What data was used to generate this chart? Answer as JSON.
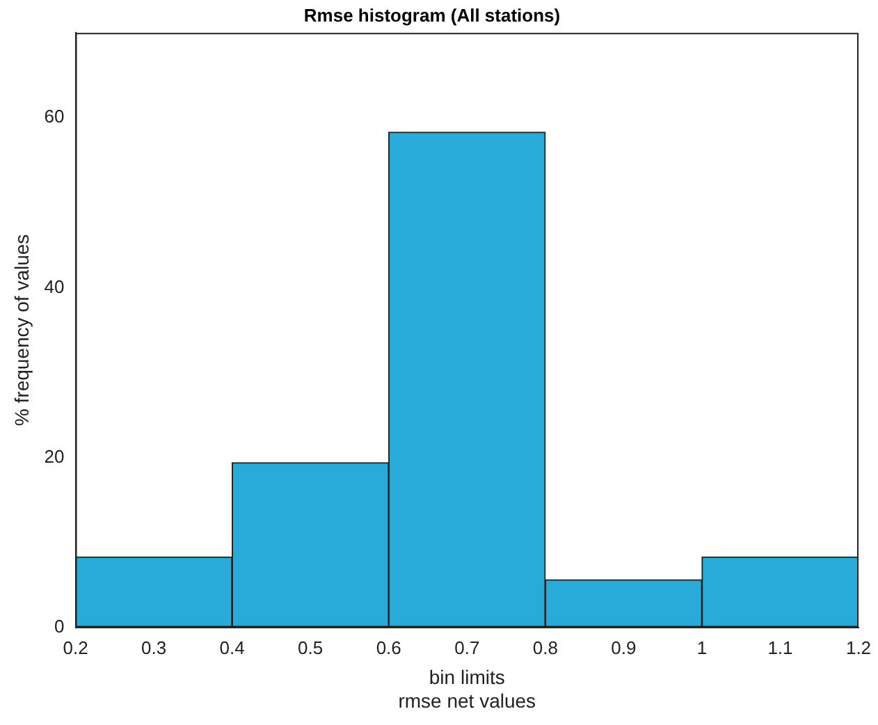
{
  "chart_data": {
    "type": "histogram",
    "title": "Rmse histogram (All stations)",
    "xlabel": "bin limits\nrmse net values",
    "ylabel": "% frequency of values",
    "bins": [
      0.2,
      0.4,
      0.6,
      0.8,
      1.0,
      1.2
    ],
    "values": [
      8.3,
      19.4,
      58.3,
      5.6,
      8.3
    ],
    "color": "#29abd9",
    "xlim": [
      0.2,
      1.2
    ],
    "xticks": [
      0.2,
      0.3,
      0.4,
      0.5,
      0.6,
      0.7,
      0.8,
      0.9,
      1,
      1.1,
      1.2
    ],
    "ylim": [
      0,
      70
    ],
    "yticks": [
      0,
      20,
      40,
      60
    ],
    "grid": false,
    "legend": false
  }
}
